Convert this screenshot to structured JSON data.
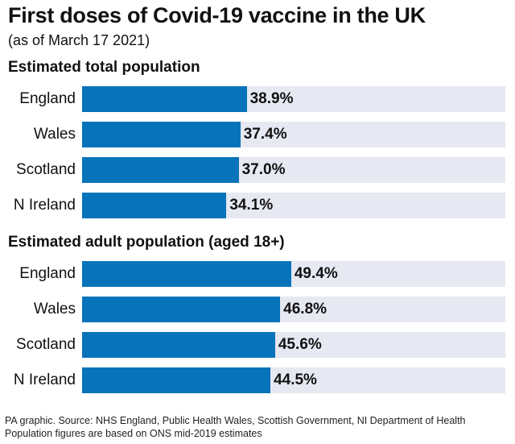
{
  "colors": {
    "bar": "#0673ba",
    "track": "#e6e8f2"
  },
  "chart_data": {
    "type": "bar",
    "orientation": "horizontal",
    "title": "First doses of Covid-19 vaccine in the UK",
    "subtitle": "(as of March 17 2021)",
    "xlim": [
      0,
      100
    ],
    "value_suffix": "%",
    "groups": [
      {
        "name": "Estimated total population",
        "categories": [
          "England",
          "Wales",
          "Scotland",
          "N Ireland"
        ],
        "values": [
          38.9,
          37.4,
          37.0,
          34.1
        ],
        "labels": [
          "38.9%",
          "37.4%",
          "37.0%",
          "34.1%"
        ]
      },
      {
        "name": "Estimated adult population (aged 18+)",
        "categories": [
          "England",
          "Wales",
          "Scotland",
          "N Ireland"
        ],
        "values": [
          49.4,
          46.8,
          45.6,
          44.5
        ],
        "labels": [
          "49.4%",
          "46.8%",
          "45.6%",
          "44.5%"
        ]
      }
    ]
  },
  "footer": {
    "line1": "PA graphic. Source: NHS England, Public Health Wales, Scottish Government, NI Department of Health",
    "line2": "Population figures are based on ONS mid-2019 estimates"
  }
}
